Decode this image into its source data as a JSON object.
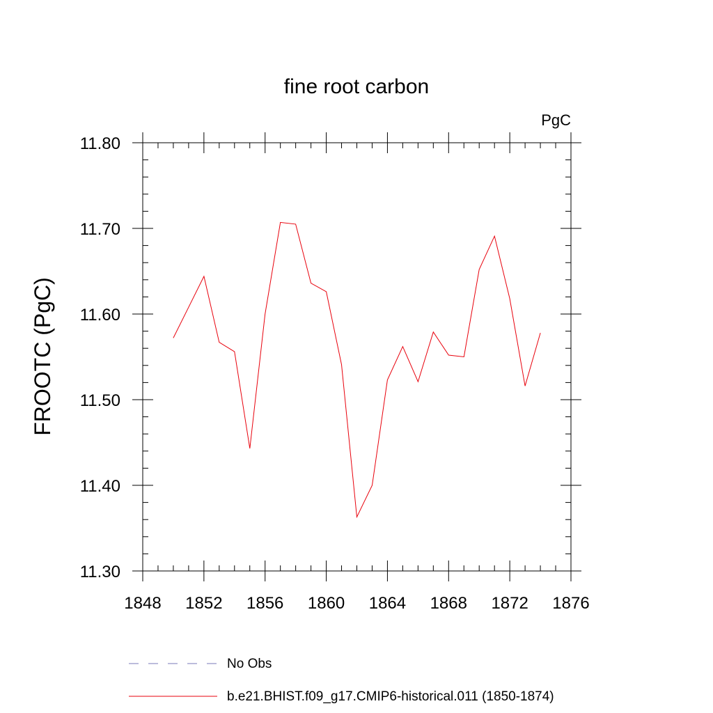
{
  "chart_data": {
    "type": "line",
    "title": "fine root carbon",
    "units_label": "PgC",
    "ylabel": "FROOTC  (PgC)",
    "xlabel": "",
    "xlim": [
      1848,
      1876
    ],
    "ylim": [
      11.3,
      11.8
    ],
    "x_ticks": [
      "1848",
      "1852",
      "1856",
      "1860",
      "1864",
      "1868",
      "1872",
      "1876"
    ],
    "y_ticks": [
      "11.30",
      "11.40",
      "11.50",
      "11.60",
      "11.70",
      "11.80"
    ],
    "grid": false,
    "series": [
      {
        "name": "b.e21.BHIST.f09_g17.CMIP6-historical.011 (1850-1874)",
        "color": "#e8000b",
        "x": [
          1850,
          1851,
          1852,
          1853,
          1854,
          1855,
          1856,
          1857,
          1858,
          1859,
          1860,
          1861,
          1862,
          1863,
          1864,
          1865,
          1866,
          1867,
          1868,
          1869,
          1870,
          1871,
          1872,
          1873,
          1874
        ],
        "y": [
          11.572,
          11.608,
          11.644,
          11.567,
          11.556,
          11.443,
          11.6,
          11.707,
          11.705,
          11.636,
          11.626,
          11.541,
          11.363,
          11.4,
          11.523,
          11.562,
          11.521,
          11.579,
          11.552,
          11.55,
          11.652,
          11.691,
          11.618,
          11.516,
          11.578
        ]
      }
    ],
    "legend": {
      "placement": "bottom",
      "entries": [
        {
          "label": "No Obs",
          "color": "#7a7ab8",
          "style": "dashed"
        },
        {
          "label": "b.e21.BHIST.f09_g17.CMIP6-historical.011 (1850-1874)",
          "color": "#e8000b",
          "style": "solid"
        }
      ]
    }
  }
}
